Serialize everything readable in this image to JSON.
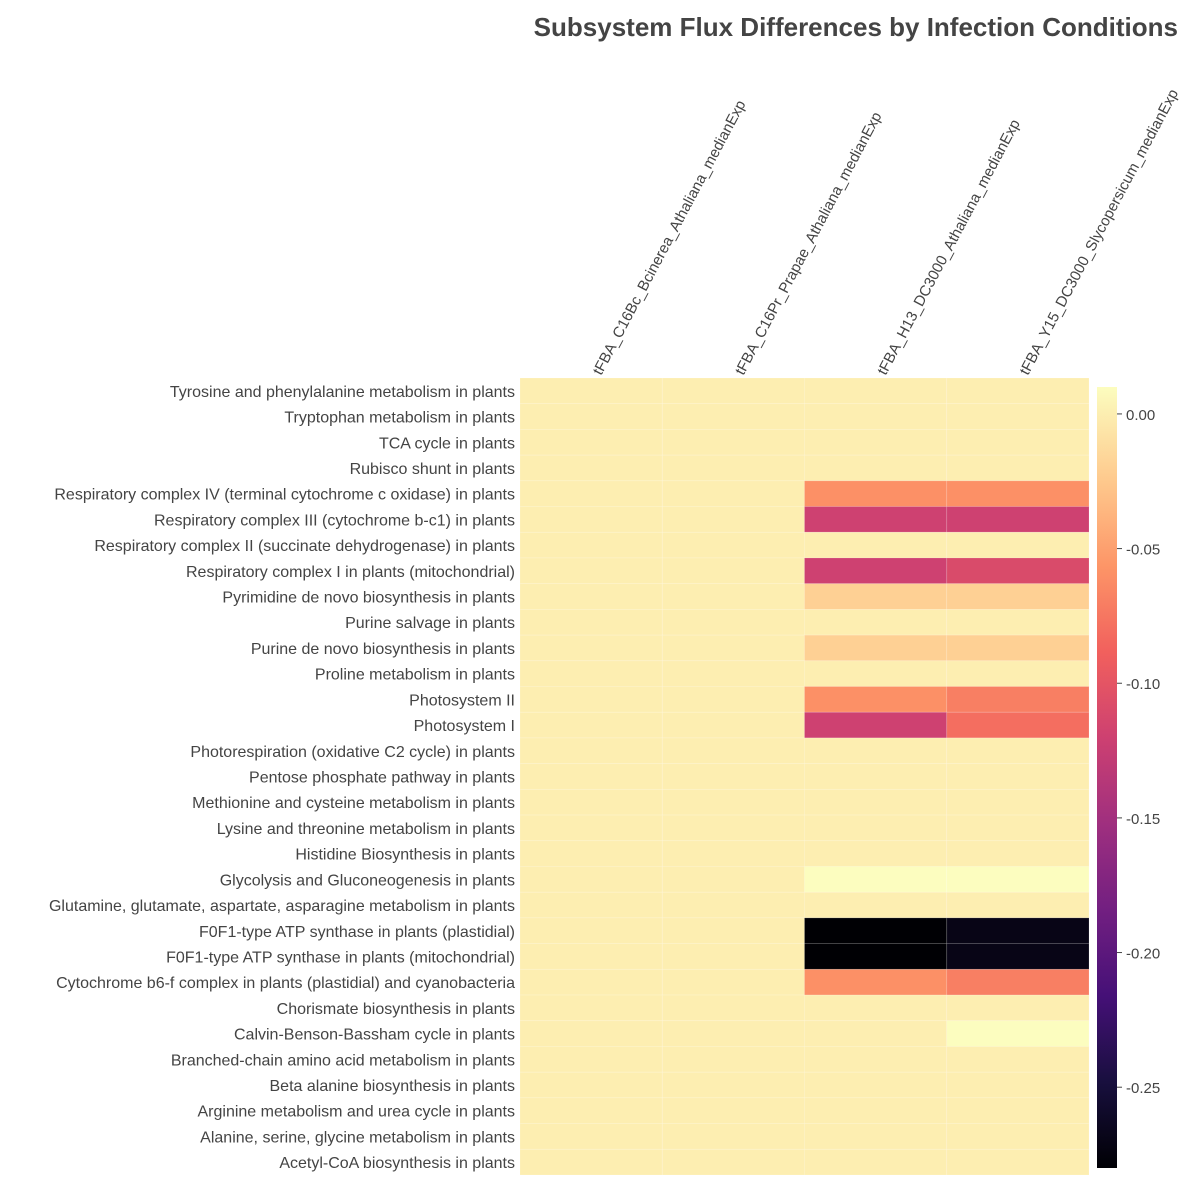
{
  "chart_data": {
    "type": "heatmap",
    "title": "Subsystem Flux Differences by Infection Conditions",
    "columns": [
      "tFBA_C16Bc_Bcinerea_Athaliana_medianExp",
      "tFBA_C16Pr_Prapae_Athaliana_medianExp",
      "tFBA_H13_DC3000_Athaliana_medianExp",
      "tFBA_Y15_DC3000_Slycopersicum_medianExp"
    ],
    "rows": [
      "Tyrosine and phenylalanine metabolism in plants",
      "Tryptophan metabolism in plants",
      "TCA cycle in plants",
      "Rubisco shunt in plants",
      "Respiratory complex IV (terminal cytochrome c oxidase) in plants",
      "Respiratory complex III (cytochrome b-c1) in plants",
      "Respiratory complex II (succinate dehydrogenase) in plants",
      "Respiratory complex I in plants (mitochondrial)",
      "Pyrimidine de novo biosynthesis in plants",
      "Purine salvage in plants",
      "Purine de novo biosynthesis in plants",
      "Proline metabolism in plants",
      "Photosystem II",
      "Photosystem I",
      "Photorespiration (oxidative C2 cycle) in plants",
      "Pentose phosphate pathway in plants",
      "Methionine and cysteine metabolism in plants",
      "Lysine and threonine metabolism in plants",
      "Histidine Biosynthesis in plants",
      "Glycolysis and Gluconeogenesis in plants",
      "Glutamine, glutamate, aspartate, asparagine metabolism in plants",
      "F0F1-type ATP synthase in plants (plastidial)",
      "F0F1-type ATP synthase in plants (mitochondrial)",
      "Cytochrome b6-f complex in plants (plastidial) and cyanobacteria",
      "Chorismate biosynthesis in plants",
      "Calvin-Benson-Bassham cycle in plants",
      "Branched-chain amino acid metabolism in plants",
      "Beta alanine biosynthesis in plants",
      "Arginine metabolism and urea cycle in plants",
      "Alanine, serine, glycine metabolism in plants",
      "Acetyl-CoA biosynthesis in plants"
    ],
    "values": [
      [
        0,
        0,
        0,
        0
      ],
      [
        0,
        0,
        0,
        0
      ],
      [
        0,
        0,
        0,
        0
      ],
      [
        0,
        0,
        0,
        0
      ],
      [
        0,
        0,
        -0.06,
        -0.06
      ],
      [
        0,
        0,
        -0.12,
        -0.12
      ],
      [
        0,
        0,
        0,
        0
      ],
      [
        0,
        0,
        -0.12,
        -0.11
      ],
      [
        0,
        0,
        -0.02,
        -0.02
      ],
      [
        0,
        0,
        0,
        0
      ],
      [
        0,
        0,
        -0.02,
        -0.02
      ],
      [
        0,
        0,
        0,
        0
      ],
      [
        0,
        0,
        -0.06,
        -0.07
      ],
      [
        0,
        0,
        -0.12,
        -0.08
      ],
      [
        0,
        0,
        0,
        0
      ],
      [
        0,
        0,
        0,
        0
      ],
      [
        0,
        0,
        0,
        0
      ],
      [
        0,
        0,
        0,
        0
      ],
      [
        0,
        0,
        0,
        0
      ],
      [
        0,
        0,
        0.01,
        0.01
      ],
      [
        0,
        0,
        0,
        0
      ],
      [
        0,
        0,
        -0.28,
        -0.27
      ],
      [
        0,
        0,
        -0.28,
        -0.27
      ],
      [
        0,
        0,
        -0.06,
        -0.07
      ],
      [
        0,
        0,
        0,
        0
      ],
      [
        0,
        0,
        0,
        0.01
      ],
      [
        0,
        0,
        0,
        0
      ],
      [
        0,
        0,
        0,
        0
      ],
      [
        0,
        0,
        0,
        0
      ],
      [
        0,
        0,
        0,
        0
      ],
      [
        0,
        0,
        0,
        0
      ]
    ],
    "colorscale": "magma",
    "zrange": [
      -0.28,
      0.01
    ],
    "colorbar_ticks": [
      0,
      -0.05,
      -0.1,
      -0.15,
      -0.2,
      -0.25
    ],
    "colorbar_tick_labels": [
      "0.00",
      "-0.05",
      "-0.10",
      "-0.15",
      "-0.20",
      "-0.25"
    ]
  }
}
